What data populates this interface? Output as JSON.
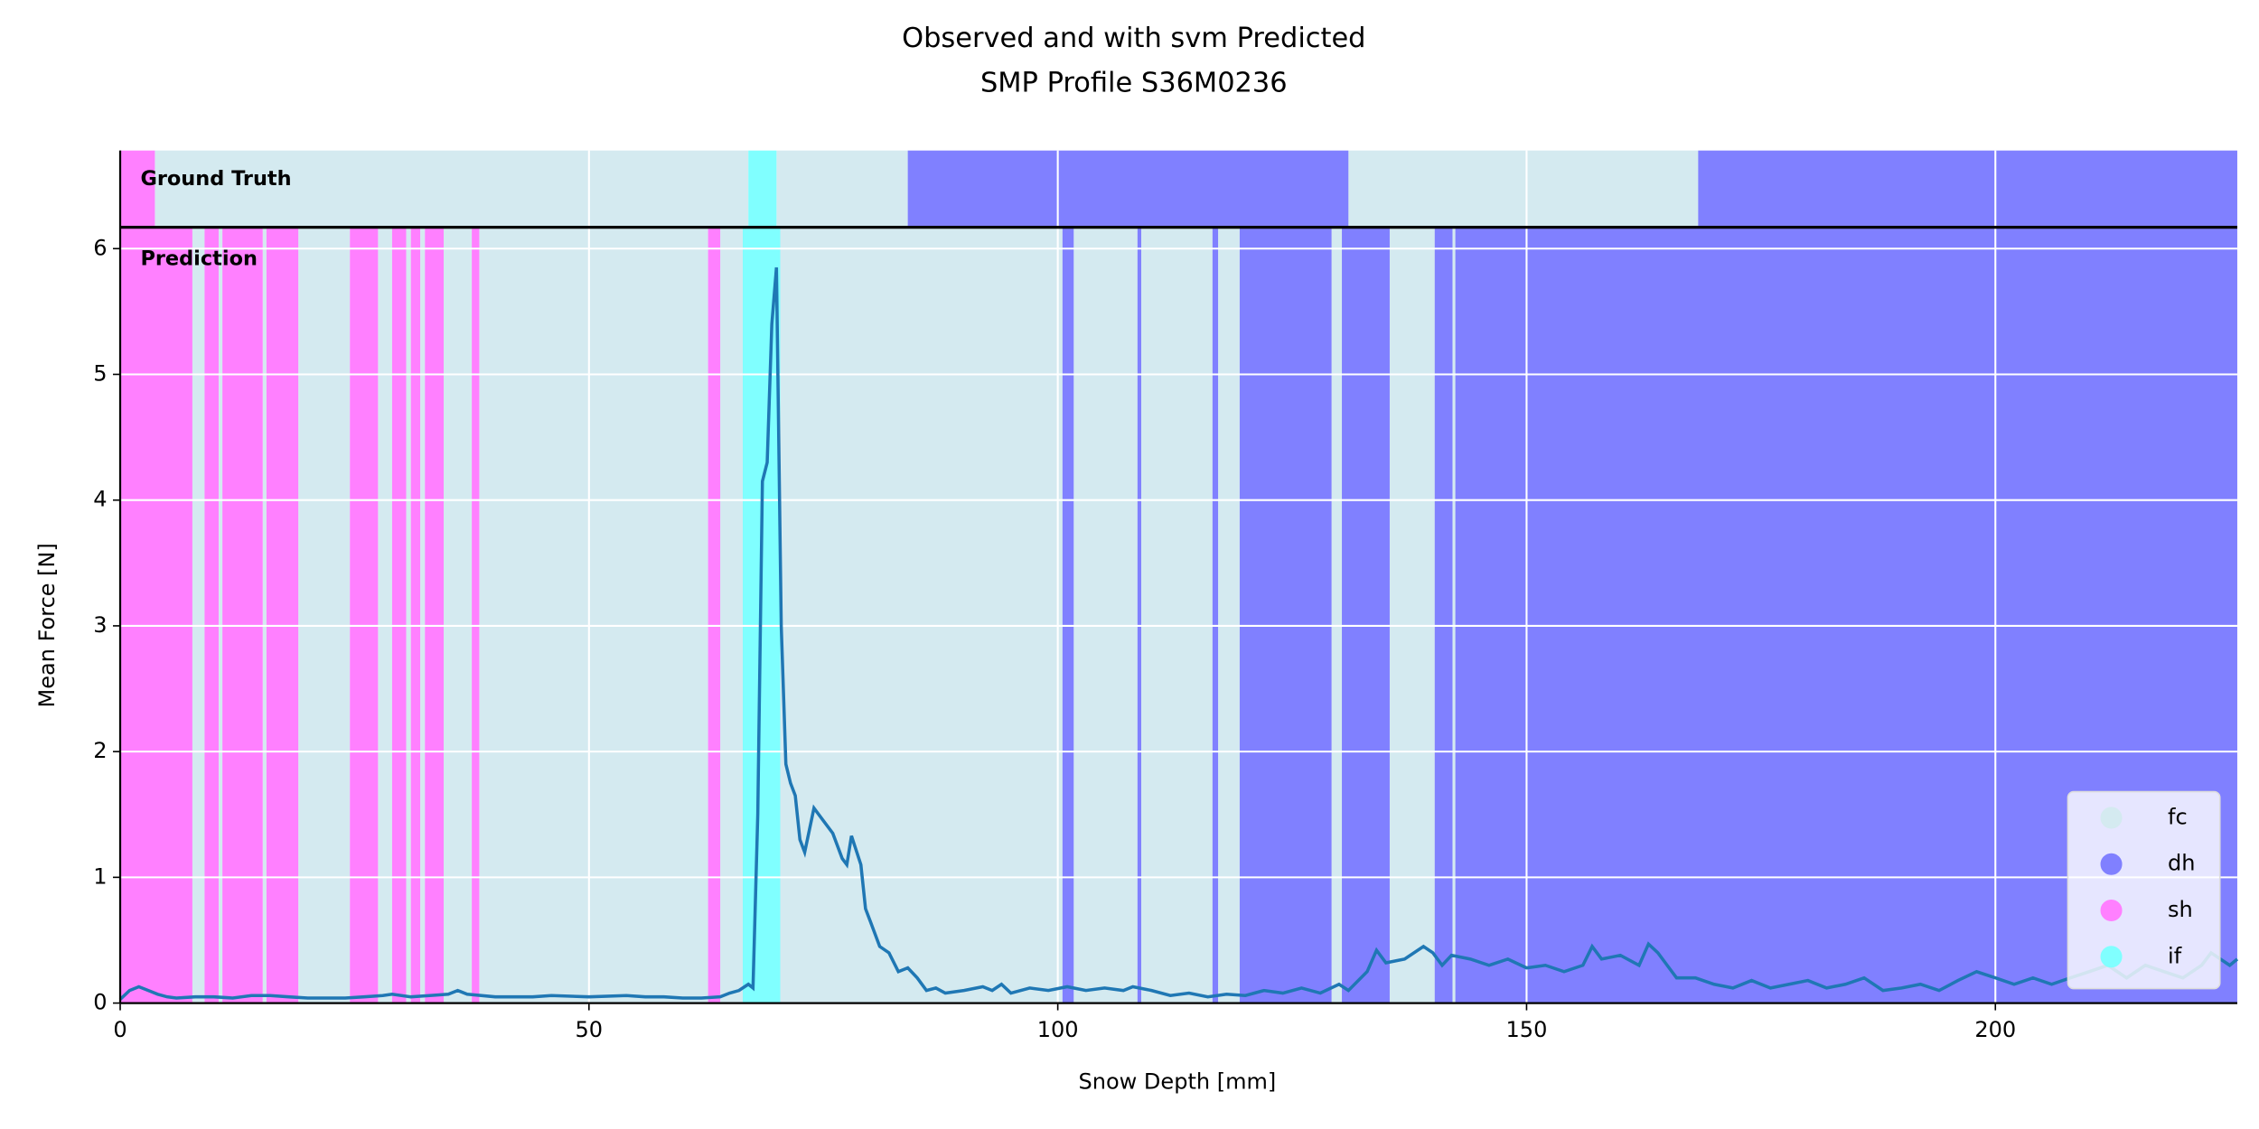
{
  "chart_data": {
    "type": "line",
    "title": [
      "Observed and with svm Predicted",
      "SMP Profile S36M0236"
    ],
    "xlabel": "Snow Depth [mm]",
    "ylabel": "Mean Force [N]",
    "ground_truth_label": "Ground Truth",
    "prediction_label": "Prediction",
    "xlim": [
      0,
      225.8
    ],
    "ylim": [
      0,
      6.17
    ],
    "xticks": [
      0,
      50,
      100,
      150,
      200
    ],
    "yticks": [
      0,
      1,
      2,
      3,
      4,
      5,
      6
    ],
    "grid": true,
    "legend": "lower right",
    "classes": [
      {
        "name": "fc",
        "color": "#d4eaf0",
        "ground_truth": [
          [
            3.7,
            67
          ],
          [
            70,
            84
          ],
          [
            131,
            168.3
          ]
        ],
        "prediction": [
          [
            7.7,
            9
          ],
          [
            10.5,
            10.9
          ],
          [
            15.2,
            15.6
          ],
          [
            19,
            24.5
          ],
          [
            27.5,
            29
          ],
          [
            30.5,
            31
          ],
          [
            32,
            32.5
          ],
          [
            34.5,
            37.5
          ],
          [
            38.3,
            62.7
          ],
          [
            64,
            66.4
          ],
          [
            70.4,
            100.5
          ],
          [
            101.7,
            108.5
          ],
          [
            108.9,
            116.5
          ],
          [
            117.1,
            119.4
          ],
          [
            129.2,
            130.3
          ],
          [
            135.4,
            140.2
          ],
          [
            142.1,
            142.4
          ]
        ]
      },
      {
        "name": "dh",
        "color": "#8080ff",
        "ground_truth": [
          [
            84,
            131
          ],
          [
            168.3,
            225.8
          ]
        ],
        "prediction": [
          [
            100.5,
            101.7
          ],
          [
            108.5,
            108.9
          ],
          [
            116.5,
            117.1
          ],
          [
            119.4,
            129.2
          ],
          [
            130.3,
            135.4
          ],
          [
            140.2,
            142.1
          ],
          [
            142.4,
            225.8
          ]
        ]
      },
      {
        "name": "sh",
        "color": "#ff80ff",
        "ground_truth": [
          [
            0,
            3.7
          ]
        ],
        "prediction": [
          [
            0,
            7.7
          ],
          [
            9,
            10.5
          ],
          [
            10.9,
            15.2
          ],
          [
            15.6,
            19
          ],
          [
            24.5,
            27.5
          ],
          [
            29,
            30.5
          ],
          [
            31,
            32
          ],
          [
            32.5,
            34.5
          ],
          [
            37.5,
            38.3
          ],
          [
            62.7,
            64
          ]
        ]
      },
      {
        "name": "if",
        "color": "#80ffff",
        "ground_truth": [
          [
            67,
            70
          ]
        ],
        "prediction": [
          [
            66.4,
            70.4
          ]
        ]
      }
    ],
    "line_color": "#1f77b4",
    "x": [
      0,
      1,
      2,
      3,
      4,
      5,
      6,
      8,
      10,
      12,
      14,
      16,
      18,
      20,
      22,
      24,
      26,
      28,
      29,
      31,
      33,
      35,
      36,
      37,
      40,
      44,
      46,
      50,
      54,
      56,
      58,
      60,
      62,
      64,
      65,
      66,
      67,
      67.5,
      68,
      68.5,
      69,
      69.5,
      70,
      70.5,
      71,
      71.5,
      72,
      72.5,
      73,
      74,
      75,
      76,
      77,
      77.5,
      78,
      79,
      79.5,
      80,
      81,
      82,
      83,
      84,
      85,
      86,
      87,
      88,
      90,
      92,
      93,
      94,
      95,
      97,
      99,
      101,
      103,
      105,
      107,
      108,
      110,
      112,
      114,
      116,
      118,
      120,
      122,
      124,
      126,
      128,
      130,
      131,
      133,
      134,
      135,
      137,
      139,
      140,
      141,
      142,
      144,
      146,
      148,
      150,
      152,
      154,
      156,
      157,
      158,
      160,
      162,
      163,
      164,
      165,
      166,
      168,
      170,
      172,
      174,
      176,
      178,
      180,
      182,
      184,
      186,
      188,
      190,
      192,
      194,
      196,
      198,
      200,
      202,
      204,
      206,
      208,
      210,
      212,
      214,
      216,
      218,
      220,
      222,
      223,
      225,
      225.8
    ],
    "values": [
      0.03,
      0.1,
      0.13,
      0.1,
      0.07,
      0.05,
      0.04,
      0.05,
      0.05,
      0.04,
      0.06,
      0.06,
      0.05,
      0.04,
      0.04,
      0.04,
      0.05,
      0.06,
      0.07,
      0.05,
      0.06,
      0.07,
      0.1,
      0.07,
      0.05,
      0.05,
      0.06,
      0.05,
      0.06,
      0.05,
      0.05,
      0.04,
      0.04,
      0.05,
      0.08,
      0.1,
      0.15,
      0.12,
      1.5,
      4.15,
      4.3,
      5.4,
      5.85,
      3.0,
      1.9,
      1.75,
      1.65,
      1.3,
      1.2,
      1.55,
      1.45,
      1.35,
      1.15,
      1.1,
      1.33,
      1.1,
      0.75,
      0.65,
      0.45,
      0.4,
      0.25,
      0.28,
      0.2,
      0.1,
      0.12,
      0.08,
      0.1,
      0.13,
      0.1,
      0.15,
      0.08,
      0.12,
      0.1,
      0.13,
      0.1,
      0.12,
      0.1,
      0.13,
      0.1,
      0.06,
      0.08,
      0.05,
      0.07,
      0.06,
      0.1,
      0.08,
      0.12,
      0.08,
      0.15,
      0.1,
      0.25,
      0.42,
      0.32,
      0.35,
      0.45,
      0.4,
      0.3,
      0.38,
      0.35,
      0.3,
      0.35,
      0.28,
      0.3,
      0.25,
      0.3,
      0.45,
      0.35,
      0.38,
      0.3,
      0.47,
      0.4,
      0.3,
      0.2,
      0.2,
      0.15,
      0.12,
      0.18,
      0.12,
      0.15,
      0.18,
      0.12,
      0.15,
      0.2,
      0.1,
      0.12,
      0.15,
      0.1,
      0.18,
      0.25,
      0.2,
      0.15,
      0.2,
      0.15,
      0.2,
      0.25,
      0.3,
      0.2,
      0.3,
      0.25,
      0.2,
      0.3,
      0.4,
      0.3,
      0.35
    ]
  }
}
